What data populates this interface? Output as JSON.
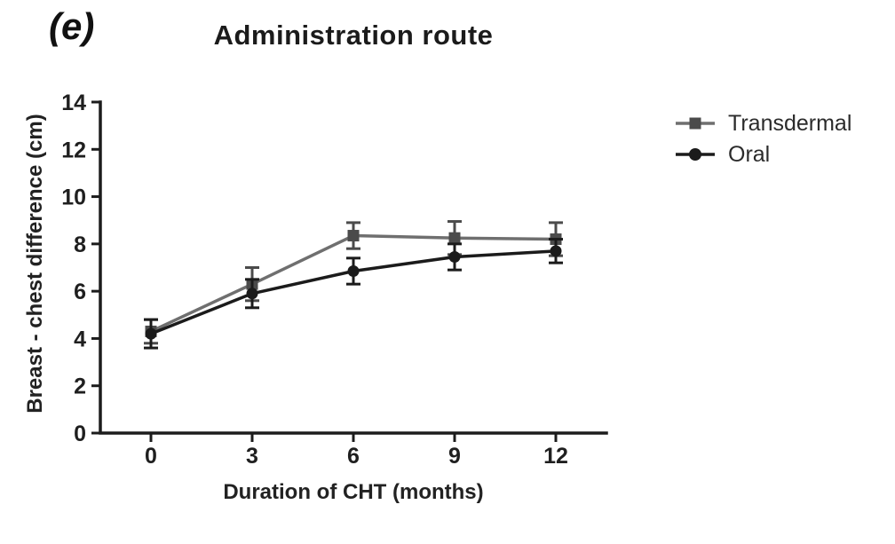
{
  "panel_label": "(e)",
  "chart_data": {
    "type": "line",
    "title": "Administration route",
    "xlabel": "Duration of CHT (months)",
    "ylabel": "Breast - chest difference (cm)",
    "x": [
      0,
      3,
      6,
      9,
      12
    ],
    "xticks": [
      0,
      3,
      6,
      9,
      12
    ],
    "yticks": [
      0,
      2,
      4,
      6,
      8,
      10,
      12,
      14
    ],
    "xlim": [
      -1.5,
      13.5
    ],
    "ylim": [
      0,
      14
    ],
    "grid": false,
    "legend_position": "right",
    "axis_color": "#1c1c1c",
    "text_color": "#1f1f1f",
    "series": [
      {
        "name": "Transdermal",
        "marker": "square",
        "color": "#6f6f6f",
        "marker_color": "#4b4b4b",
        "values": [
          4.3,
          6.3,
          8.35,
          8.25,
          8.2
        ],
        "errors": [
          0.5,
          0.7,
          0.55,
          0.7,
          0.7
        ]
      },
      {
        "name": "Oral",
        "marker": "circle",
        "color": "#1b1b1b",
        "marker_color": "#1b1b1b",
        "values": [
          4.2,
          5.9,
          6.85,
          7.45,
          7.7
        ],
        "errors": [
          0.6,
          0.6,
          0.55,
          0.55,
          0.5
        ]
      }
    ]
  }
}
